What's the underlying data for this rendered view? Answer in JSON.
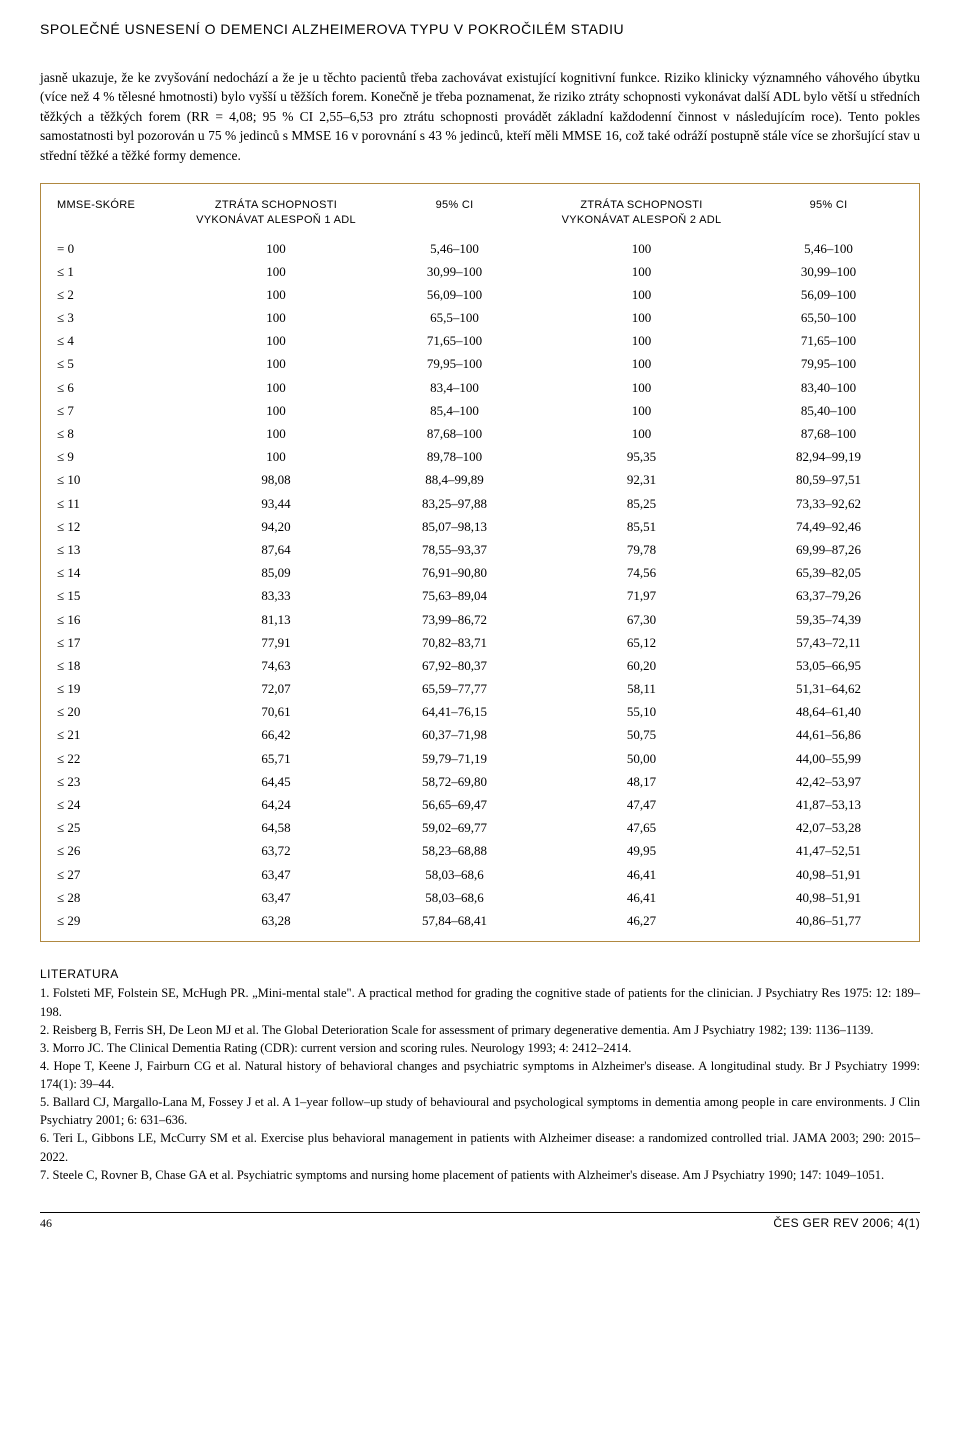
{
  "header": {
    "title": "SPOLEČNÉ USNESENÍ O DEMENCI ALZHEIMEROVA TYPU V POKROČILÉM STADIU"
  },
  "body": {
    "paragraph": "jasně ukazuje, že ke zvyšování nedochází a že je u těchto pacientů třeba zachovávat existující kognitivní funkce. Riziko klinicky významného váhového úbytku (více než 4 % tělesné hmotnosti) bylo vyšší u těžších forem. Konečně je třeba poznamenat, že riziko ztráty schopnosti vykonávat další ADL bylo větší u středních těžkých a těžkých forem (RR = 4,08; 95 % CI 2,55–6,53 pro ztrátu schopnosti provádět základní každodenní činnost v následujícím roce). Tento pokles samostatnosti byl pozorován u 75 % jedinců s MMSE 16 v porovnání s 43 % jedinců, kteří měli MMSE 16, což také odráží postupně stále více se zhoršující stav u střední těžké a těžké formy demence."
  },
  "table": {
    "columns": [
      "MMSE-SKÓRE",
      "ZTRÁTA SCHOPNOSTI\nVYKONÁVAT ALESPOŇ 1 ADL",
      "95% CI",
      "ZTRÁTA SCHOPNOSTI\nVYKONÁVAT ALESPOŇ 2 ADL",
      "95% CI"
    ],
    "rows": [
      [
        "= 0",
        "100",
        "5,46–100",
        "100",
        "5,46–100"
      ],
      [
        "≤ 1",
        "100",
        "30,99–100",
        "100",
        "30,99–100"
      ],
      [
        "≤ 2",
        "100",
        "56,09–100",
        "100",
        "56,09–100"
      ],
      [
        "≤ 3",
        "100",
        "65,5–100",
        "100",
        "65,50–100"
      ],
      [
        "≤ 4",
        "100",
        "71,65–100",
        "100",
        "71,65–100"
      ],
      [
        "≤ 5",
        "100",
        "79,95–100",
        "100",
        "79,95–100"
      ],
      [
        "≤ 6",
        "100",
        "83,4–100",
        "100",
        "83,40–100"
      ],
      [
        "≤ 7",
        "100",
        "85,4–100",
        "100",
        "85,40–100"
      ],
      [
        "≤ 8",
        "100",
        "87,68–100",
        "100",
        "87,68–100"
      ],
      [
        "≤ 9",
        "100",
        "89,78–100",
        "95,35",
        "82,94–99,19"
      ],
      [
        "≤ 10",
        "98,08",
        "88,4–99,89",
        "92,31",
        "80,59–97,51"
      ],
      [
        "≤ 11",
        "93,44",
        "83,25–97,88",
        "85,25",
        "73,33–92,62"
      ],
      [
        "≤ 12",
        "94,20",
        "85,07–98,13",
        "85,51",
        "74,49–92,46"
      ],
      [
        "≤ 13",
        "87,64",
        "78,55–93,37",
        "79,78",
        "69,99–87,26"
      ],
      [
        "≤ 14",
        "85,09",
        "76,91–90,80",
        "74,56",
        "65,39–82,05"
      ],
      [
        "≤ 15",
        "83,33",
        "75,63–89,04",
        "71,97",
        "63,37–79,26"
      ],
      [
        "≤ 16",
        "81,13",
        "73,99–86,72",
        "67,30",
        "59,35–74,39"
      ],
      [
        "≤ 17",
        "77,91",
        "70,82–83,71",
        "65,12",
        "57,43–72,11"
      ],
      [
        "≤ 18",
        "74,63",
        "67,92–80,37",
        "60,20",
        "53,05–66,95"
      ],
      [
        "≤ 19",
        "72,07",
        "65,59–77,77",
        "58,11",
        "51,31–64,62"
      ],
      [
        "≤ 20",
        "70,61",
        "64,41–76,15",
        "55,10",
        "48,64–61,40"
      ],
      [
        "≤ 21",
        "66,42",
        "60,37–71,98",
        "50,75",
        "44,61–56,86"
      ],
      [
        "≤ 22",
        "65,71",
        "59,79–71,19",
        "50,00",
        "44,00–55,99"
      ],
      [
        "≤ 23",
        "64,45",
        "58,72–69,80",
        "48,17",
        "42,42–53,97"
      ],
      [
        "≤ 24",
        "64,24",
        "56,65–69,47",
        "47,47",
        "41,87–53,13"
      ],
      [
        "≤ 25",
        "64,58",
        "59,02–69,77",
        "47,65",
        "42,07–53,28"
      ],
      [
        "≤ 26",
        "63,72",
        "58,23–68,88",
        "49,95",
        "41,47–52,51"
      ],
      [
        "≤ 27",
        "63,47",
        "58,03–68,6",
        "46,41",
        "40,98–51,91"
      ],
      [
        "≤ 28",
        "63,47",
        "58,03–68,6",
        "46,41",
        "40,98–51,91"
      ],
      [
        "≤ 29",
        "63,28",
        "57,84–68,41",
        "46,27",
        "40,86–51,77"
      ]
    ]
  },
  "literature": {
    "heading": "LITERATURA",
    "items": [
      "1. Folsteti MF, Folstein SE, McHugh PR. „Mini-mental stale\". A practical method for grading the cognitive stade of patients for the clinician. J Psychiatry Res 1975: 12: 189–198.",
      "2. Reisberg B, Ferris SH, De Leon MJ et al. The Global Deterioration Scale for assessment of primary degenerative dementia. Am J Psychiatry 1982; 139: 1136–1139.",
      "3. Morro JC. The Clinical Dementia Rating (CDR): current version and scoring rules. Neurology 1993; 4: 2412–2414.",
      "4. Hope T, Keene J, Fairburn CG et al. Natural history of behavioral changes and psychiatric symptoms in Alzheimer's disease. A longitudinal study. Br J Psychiatry 1999: 174(1): 39–44.",
      "5. Ballard CJ, Margallo-Lana M, Fossey J et al. A 1–year follow–up study of behavioural and psychological symptoms in dementia among people in care environments. J Clin Psychiatry 2001; 6: 631–636.",
      "6. Teri L, Gibbons LE, McCurry SM et al. Exercise plus behavioral management in patients with Alzheimer disease: a randomized controlled trial. JAMA 2003; 290: 2015–2022.",
      "7. Steele C, Rovner B, Chase GA et al. Psychiatric symptoms and nursing home placement of patients with Alzheimer's disease. Am J Psychiatry 1990; 147: 1049–1051."
    ]
  },
  "footer": {
    "page": "46",
    "journal": "ČES GER REV 2006; 4(1)"
  }
}
